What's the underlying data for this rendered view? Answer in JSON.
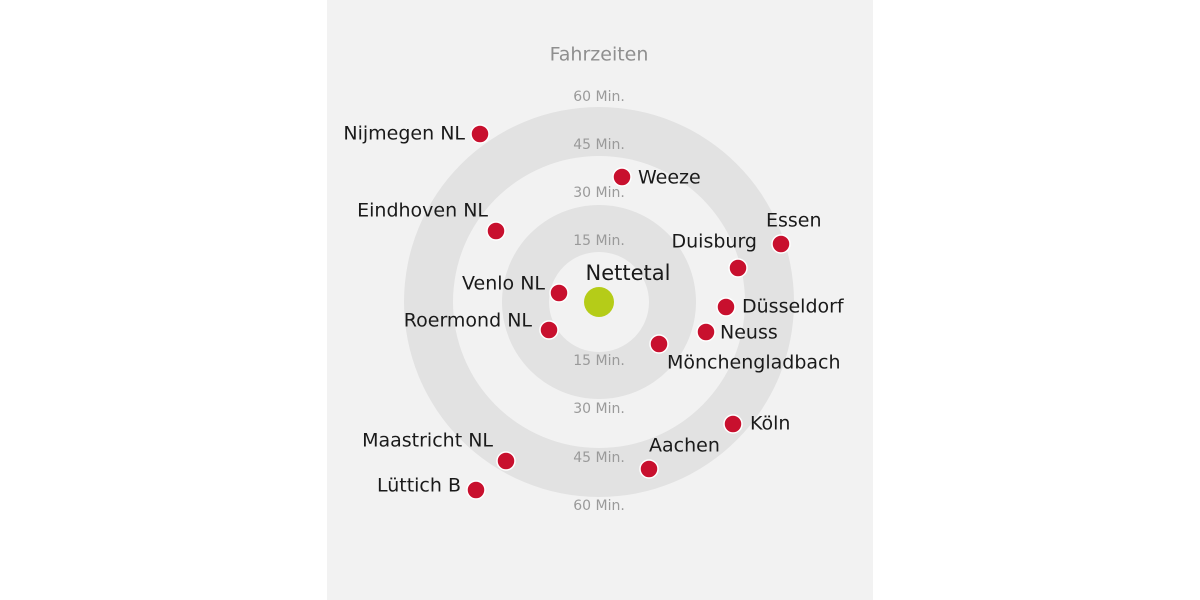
{
  "title": "Fahrzeiten",
  "ring_labels_top": [
    "60 Min.",
    "45 Min.",
    "30 Min.",
    "15 Min."
  ],
  "ring_labels_bottom": [
    "15 Min.",
    "30 Min.",
    "45 Min.",
    "60 Min."
  ],
  "center": {
    "label": "Nettetal"
  },
  "cities": [
    {
      "label": "Nijmegen NL"
    },
    {
      "label": "Weeze"
    },
    {
      "label": "Eindhoven NL"
    },
    {
      "label": "Essen"
    },
    {
      "label": "Duisburg"
    },
    {
      "label": "Venlo NL"
    },
    {
      "label": "Düsseldorf"
    },
    {
      "label": "Roermond NL"
    },
    {
      "label": "Neuss"
    },
    {
      "label": "Mönchengladbach"
    },
    {
      "label": "Köln"
    },
    {
      "label": "Aachen"
    },
    {
      "label": "Maastricht NL"
    },
    {
      "label": "Lüttich B"
    }
  ]
}
